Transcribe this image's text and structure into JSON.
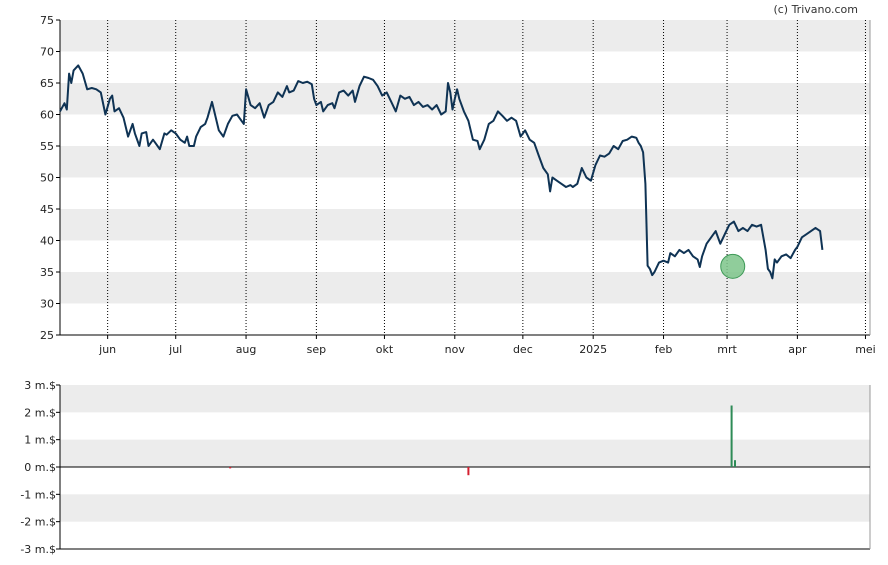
{
  "credit": "(c) Trivano.com",
  "colors": {
    "line": "#0f3354",
    "band": "#ececec",
    "axis": "#000000",
    "vline": "#000000",
    "insider_buy": "#2e8b57",
    "insider_sell": "#d42030",
    "marker_fill": "#7cc48a",
    "marker_stroke": "#3f9a58"
  },
  "chart_data": [
    {
      "type": "line",
      "title": "",
      "ylim": [
        25,
        75
      ],
      "y_ticks": [
        "25",
        "30",
        "35",
        "40",
        "45",
        "50",
        "55",
        "60",
        "65",
        "70",
        "75"
      ],
      "x_ticks": [
        "jun",
        "jul",
        "aug",
        "sep",
        "okt",
        "nov",
        "dec",
        "2025",
        "feb",
        "mrt",
        "apr",
        "mei"
      ],
      "x_tick_days": [
        21,
        51,
        82,
        113,
        143,
        174,
        204,
        235,
        266,
        294,
        325,
        355
      ],
      "xlim_days": [
        0,
        357
      ],
      "grid": "alternating horizontal bands, dotted vertical lines at month boundaries",
      "series": [
        {
          "values": [
            [
              0,
              60.5
            ],
            [
              2,
              61.8
            ],
            [
              3,
              60.8
            ],
            [
              4,
              66.5
            ],
            [
              5,
              65.0
            ],
            [
              6,
              67.0
            ],
            [
              8,
              67.8
            ],
            [
              10,
              66.5
            ],
            [
              12,
              64.0
            ],
            [
              14,
              64.2
            ],
            [
              16,
              64.0
            ],
            [
              18,
              63.5
            ],
            [
              20,
              60.0
            ],
            [
              22,
              62.5
            ],
            [
              23,
              63.0
            ],
            [
              24,
              60.5
            ],
            [
              26,
              61.0
            ],
            [
              28,
              59.5
            ],
            [
              30,
              56.5
            ],
            [
              32,
              58.5
            ],
            [
              33,
              57.0
            ],
            [
              35,
              55.0
            ],
            [
              36,
              57.0
            ],
            [
              38,
              57.2
            ],
            [
              39,
              55.0
            ],
            [
              41,
              56.0
            ],
            [
              42,
              55.5
            ],
            [
              44,
              54.5
            ],
            [
              46,
              57.0
            ],
            [
              47,
              56.8
            ],
            [
              49,
              57.5
            ],
            [
              51,
              57.0
            ],
            [
              53,
              56.0
            ],
            [
              55,
              55.5
            ],
            [
              56,
              56.5
            ],
            [
              57,
              55.0
            ],
            [
              59,
              55.0
            ],
            [
              60,
              56.5
            ],
            [
              62,
              58.0
            ],
            [
              64,
              58.5
            ],
            [
              65,
              59.5
            ],
            [
              67,
              62.0
            ],
            [
              70,
              57.5
            ],
            [
              72,
              56.5
            ],
            [
              74,
              58.5
            ],
            [
              76,
              59.8
            ],
            [
              78,
              60.0
            ],
            [
              80,
              59.0
            ],
            [
              81,
              58.5
            ],
            [
              82,
              64.0
            ],
            [
              84,
              61.5
            ],
            [
              86,
              61.0
            ],
            [
              88,
              61.8
            ],
            [
              90,
              59.5
            ],
            [
              92,
              61.5
            ],
            [
              94,
              62.0
            ],
            [
              96,
              63.5
            ],
            [
              98,
              62.8
            ],
            [
              100,
              64.5
            ],
            [
              101,
              63.5
            ],
            [
              103,
              63.8
            ],
            [
              105,
              65.3
            ],
            [
              107,
              65.0
            ],
            [
              109,
              65.2
            ],
            [
              111,
              64.8
            ],
            [
              112,
              62.5
            ],
            [
              113,
              61.5
            ],
            [
              115,
              62.0
            ],
            [
              116,
              60.5
            ],
            [
              118,
              61.5
            ],
            [
              120,
              61.8
            ],
            [
              121,
              61.0
            ],
            [
              123,
              63.5
            ],
            [
              125,
              63.8
            ],
            [
              127,
              63.0
            ],
            [
              129,
              63.8
            ],
            [
              130,
              62.0
            ],
            [
              132,
              64.5
            ],
            [
              134,
              66.0
            ],
            [
              136,
              65.8
            ],
            [
              138,
              65.5
            ],
            [
              140,
              64.5
            ],
            [
              142,
              63.0
            ],
            [
              144,
              63.5
            ],
            [
              146,
              62.0
            ],
            [
              148,
              60.5
            ],
            [
              150,
              63.0
            ],
            [
              152,
              62.5
            ],
            [
              154,
              62.8
            ],
            [
              156,
              61.5
            ],
            [
              158,
              62.0
            ],
            [
              160,
              61.2
            ],
            [
              162,
              61.5
            ],
            [
              164,
              60.8
            ],
            [
              166,
              61.5
            ],
            [
              168,
              60.0
            ],
            [
              170,
              60.5
            ],
            [
              171,
              65.0
            ],
            [
              172,
              63.5
            ],
            [
              173,
              60.8
            ],
            [
              174,
              62.5
            ],
            [
              175,
              64.0
            ],
            [
              176,
              62.5
            ],
            [
              178,
              60.5
            ],
            [
              180,
              59.0
            ],
            [
              182,
              56.0
            ],
            [
              184,
              55.8
            ],
            [
              185,
              54.5
            ],
            [
              187,
              56.0
            ],
            [
              189,
              58.5
            ],
            [
              191,
              59.0
            ],
            [
              193,
              60.5
            ],
            [
              195,
              59.8
            ],
            [
              197,
              59.0
            ],
            [
              199,
              59.5
            ],
            [
              201,
              59.0
            ],
            [
              203,
              56.5
            ],
            [
              205,
              57.5
            ],
            [
              207,
              56.0
            ],
            [
              209,
              55.5
            ],
            [
              211,
              53.5
            ],
            [
              213,
              51.5
            ],
            [
              215,
              50.5
            ],
            [
              216,
              47.8
            ],
            [
              217,
              50.0
            ],
            [
              219,
              49.5
            ],
            [
              221,
              49.0
            ],
            [
              223,
              48.5
            ],
            [
              225,
              48.8
            ],
            [
              226,
              48.5
            ],
            [
              228,
              49.0
            ],
            [
              230,
              51.5
            ],
            [
              232,
              50.0
            ],
            [
              234,
              49.5
            ],
            [
              236,
              52.0
            ],
            [
              238,
              53.5
            ],
            [
              240,
              53.3
            ],
            [
              242,
              53.8
            ],
            [
              244,
              55.0
            ],
            [
              246,
              54.5
            ],
            [
              248,
              55.8
            ],
            [
              250,
              56.0
            ],
            [
              252,
              56.5
            ],
            [
              254,
              56.3
            ],
            [
              255,
              55.5
            ],
            [
              256,
              55.0
            ],
            [
              257,
              54.0
            ],
            [
              258,
              49.0
            ],
            [
              259,
              36.0
            ],
            [
              260,
              35.5
            ],
            [
              261,
              34.5
            ],
            [
              262,
              35.0
            ],
            [
              264,
              36.5
            ],
            [
              266,
              36.8
            ],
            [
              268,
              36.5
            ],
            [
              269,
              38.0
            ],
            [
              271,
              37.5
            ],
            [
              273,
              38.5
            ],
            [
              275,
              38.0
            ],
            [
              277,
              38.5
            ],
            [
              279,
              37.5
            ],
            [
              281,
              37.0
            ],
            [
              282,
              35.8
            ],
            [
              283,
              37.5
            ],
            [
              285,
              39.5
            ],
            [
              287,
              40.5
            ],
            [
              289,
              41.5
            ],
            [
              291,
              39.5
            ],
            [
              293,
              41.0
            ],
            [
              295,
              42.5
            ],
            [
              297,
              43.0
            ],
            [
              299,
              41.5
            ],
            [
              301,
              42.0
            ],
            [
              303,
              41.5
            ],
            [
              305,
              42.5
            ],
            [
              307,
              42.2
            ],
            [
              309,
              42.5
            ],
            [
              311,
              38.5
            ],
            [
              312,
              35.5
            ],
            [
              313,
              35.0
            ],
            [
              314,
              34.0
            ],
            [
              315,
              37.0
            ],
            [
              316,
              36.5
            ],
            [
              318,
              37.5
            ],
            [
              320,
              37.8
            ],
            [
              322,
              37.2
            ],
            [
              324,
              38.5
            ],
            [
              325,
              39.0
            ],
            [
              327,
              40.5
            ],
            [
              329,
              41.0
            ],
            [
              331,
              41.5
            ],
            [
              333,
              42.0
            ],
            [
              335,
              41.5
            ],
            [
              336,
              38.5
            ]
          ]
        }
      ],
      "markers": [
        {
          "label": "insider-buy",
          "x_day": 296.5,
          "y": 35.9
        }
      ]
    },
    {
      "type": "bar",
      "title": "",
      "ylim": [
        -3,
        3
      ],
      "y_ticks": [
        "-3 m.$",
        "-2 m.$",
        "-1 m.$",
        "0 m.$",
        "1 m.$",
        "2 m.$",
        "3 m.$"
      ],
      "xlim_days": [
        0,
        357
      ],
      "grid": "alternating horizontal bands",
      "series": [
        {
          "values": [
            {
              "x_day": 75,
              "value": -0.05,
              "kind": "sell"
            },
            {
              "x_day": 180,
              "value": -0.3,
              "kind": "sell"
            },
            {
              "x_day": 296,
              "value": 2.25,
              "kind": "buy"
            },
            {
              "x_day": 297.5,
              "value": 0.25,
              "kind": "buy"
            }
          ]
        }
      ]
    }
  ]
}
